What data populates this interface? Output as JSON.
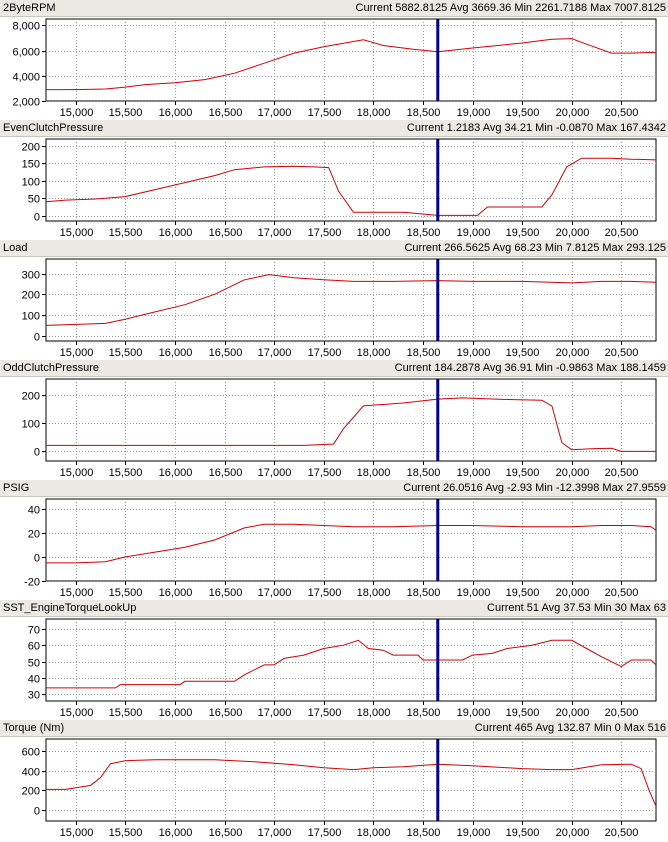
{
  "colors": {
    "line": "#d40000",
    "cursor": "#00008b",
    "grid": "#9a9a9a",
    "header_bg": "#ece9e3"
  },
  "cursor_x": 18650,
  "chart_data": [
    {
      "type": "line",
      "title": "2ByteRPM",
      "stats": "Current 5882.8125 Avg 3669.36 Min 2261.7188 Max 7007.8125",
      "ylim": [
        2000,
        8500
      ],
      "yticks": [
        2000,
        4000,
        6000,
        8000
      ],
      "ytick_labels": [
        "2,000",
        "4,000",
        "6,000",
        "8,000"
      ],
      "xlim": [
        14700,
        20850
      ],
      "xticks": [
        15000,
        15500,
        16000,
        16500,
        17000,
        17500,
        18000,
        18500,
        19000,
        19500,
        20000,
        20500
      ],
      "xtick_labels": [
        "15,000",
        "15,500",
        "16,000",
        "16,500",
        "17,000",
        "17,500",
        "18,000",
        "18,500",
        "19,000",
        "19,500",
        "20,000",
        "20,500"
      ],
      "series": [
        {
          "values": [
            [
              14700,
              2900
            ],
            [
              15000,
              2900
            ],
            [
              15300,
              2950
            ],
            [
              15500,
              3100
            ],
            [
              15700,
              3300
            ],
            [
              16000,
              3450
            ],
            [
              16300,
              3700
            ],
            [
              16600,
              4200
            ],
            [
              16900,
              5000
            ],
            [
              17200,
              5800
            ],
            [
              17500,
              6300
            ],
            [
              17900,
              6850
            ],
            [
              18100,
              6400
            ],
            [
              18400,
              6100
            ],
            [
              18650,
              5900
            ],
            [
              19000,
              6200
            ],
            [
              19500,
              6600
            ],
            [
              19800,
              6900
            ],
            [
              20000,
              6950
            ],
            [
              20150,
              6500
            ],
            [
              20400,
              5800
            ],
            [
              20600,
              5800
            ],
            [
              20850,
              5850
            ]
          ]
        }
      ]
    },
    {
      "type": "line",
      "title": "EvenClutchPressure",
      "stats": "Current 1.2183 Avg 34.21 Min -0.0870 Max 167.4342",
      "ylim": [
        -15,
        220
      ],
      "yticks": [
        0,
        50,
        100,
        150,
        200
      ],
      "ytick_labels": [
        "0",
        "50",
        "100",
        "150",
        "200"
      ],
      "xlim": [
        14700,
        20850
      ],
      "xticks": [
        15000,
        15500,
        16000,
        16500,
        17000,
        17500,
        18000,
        18500,
        19000,
        19500,
        20000,
        20500
      ],
      "xtick_labels": [
        "15,000",
        "15,500",
        "16,000",
        "16,500",
        "17,000",
        "17,500",
        "18,000",
        "18,500",
        "19,000",
        "19,500",
        "20,000",
        "20,500"
      ],
      "series": [
        {
          "values": [
            [
              14700,
              40
            ],
            [
              14900,
              45
            ],
            [
              15200,
              48
            ],
            [
              15500,
              55
            ],
            [
              15800,
              75
            ],
            [
              16100,
              95
            ],
            [
              16400,
              115
            ],
            [
              16600,
              132
            ],
            [
              16900,
              140
            ],
            [
              17200,
              142
            ],
            [
              17400,
              140
            ],
            [
              17550,
              138
            ],
            [
              17650,
              70
            ],
            [
              17800,
              10
            ],
            [
              18000,
              10
            ],
            [
              18300,
              10
            ],
            [
              18500,
              5
            ],
            [
              18650,
              1
            ],
            [
              18900,
              1
            ],
            [
              19050,
              1
            ],
            [
              19150,
              25
            ],
            [
              19400,
              25
            ],
            [
              19700,
              25
            ],
            [
              19800,
              60
            ],
            [
              19950,
              140
            ],
            [
              20100,
              165
            ],
            [
              20400,
              165
            ],
            [
              20600,
              162
            ],
            [
              20850,
              160
            ]
          ]
        }
      ]
    },
    {
      "type": "line",
      "title": "Load",
      "stats": "Current 266.5625 Avg 68.23 Min 7.8125 Max 293.125",
      "ylim": [
        -25,
        370
      ],
      "yticks": [
        0,
        100,
        200,
        300
      ],
      "ytick_labels": [
        "0",
        "100",
        "200",
        "300"
      ],
      "xlim": [
        14700,
        20850
      ],
      "xticks": [
        15000,
        15500,
        16000,
        16500,
        17000,
        17500,
        18000,
        18500,
        19000,
        19500,
        20000,
        20500
      ],
      "xtick_labels": [
        "15,000",
        "15,500",
        "16,000",
        "16,500",
        "17,000",
        "17,500",
        "18,000",
        "18,500",
        "19,000",
        "19,500",
        "20,000",
        "20,500"
      ],
      "series": [
        {
          "values": [
            [
              14700,
              50
            ],
            [
              15000,
              55
            ],
            [
              15300,
              60
            ],
            [
              15500,
              80
            ],
            [
              15800,
              115
            ],
            [
              16100,
              150
            ],
            [
              16400,
              200
            ],
            [
              16700,
              270
            ],
            [
              16950,
              295
            ],
            [
              17200,
              280
            ],
            [
              17500,
              270
            ],
            [
              17800,
              262
            ],
            [
              18200,
              262
            ],
            [
              18650,
              266
            ],
            [
              19000,
              262
            ],
            [
              19500,
              262
            ],
            [
              20000,
              255
            ],
            [
              20300,
              262
            ],
            [
              20600,
              262
            ],
            [
              20850,
              258
            ]
          ]
        }
      ]
    },
    {
      "type": "line",
      "title": "OddClutchPressure",
      "stats": "Current 184.2878 Avg 36.91 Min -0.9863 Max 188.1459",
      "ylim": [
        -35,
        255
      ],
      "yticks": [
        0,
        100,
        200
      ],
      "ytick_labels": [
        "0",
        "100",
        "200"
      ],
      "xlim": [
        14700,
        20850
      ],
      "xticks": [
        15000,
        15500,
        16000,
        16500,
        17000,
        17500,
        18000,
        18500,
        19000,
        19500,
        20000,
        20500
      ],
      "xtick_labels": [
        "15,000",
        "15,500",
        "16,000",
        "16,500",
        "17,000",
        "17,500",
        "18,000",
        "18,500",
        "19,000",
        "19,500",
        "20,000",
        "20,500"
      ],
      "series": [
        {
          "values": [
            [
              14700,
              20
            ],
            [
              15500,
              20
            ],
            [
              16500,
              20
            ],
            [
              17300,
              20
            ],
            [
              17600,
              25
            ],
            [
              17700,
              80
            ],
            [
              17900,
              160
            ],
            [
              18300,
              170
            ],
            [
              18650,
              184
            ],
            [
              18900,
              188
            ],
            [
              19300,
              183
            ],
            [
              19700,
              180
            ],
            [
              19800,
              160
            ],
            [
              19900,
              30
            ],
            [
              20000,
              5
            ],
            [
              20200,
              8
            ],
            [
              20400,
              10
            ],
            [
              20500,
              -1
            ],
            [
              20850,
              -1
            ]
          ]
        }
      ]
    },
    {
      "type": "line",
      "title": "PSIG",
      "stats": "Current 26.0516 Avg -2.93 Min -12.3998 Max 27.9559",
      "ylim": [
        -20,
        48
      ],
      "yticks": [
        -20,
        0,
        20,
        40
      ],
      "ytick_labels": [
        "-20",
        "0",
        "20",
        "40"
      ],
      "xlim": [
        14700,
        20850
      ],
      "xticks": [
        15000,
        15500,
        16000,
        16500,
        17000,
        17500,
        18000,
        18500,
        19000,
        19500,
        20000,
        20500
      ],
      "xtick_labels": [
        "15,000",
        "15,500",
        "16,000",
        "16,500",
        "17,000",
        "17,500",
        "18,000",
        "18,500",
        "19,000",
        "19,500",
        "20,000",
        "20,500"
      ],
      "series": [
        {
          "values": [
            [
              14700,
              -5
            ],
            [
              15000,
              -5
            ],
            [
              15300,
              -4
            ],
            [
              15500,
              0
            ],
            [
              15800,
              4
            ],
            [
              16100,
              8
            ],
            [
              16400,
              14
            ],
            [
              16700,
              24
            ],
            [
              16900,
              27
            ],
            [
              17200,
              27
            ],
            [
              17500,
              26
            ],
            [
              17800,
              25
            ],
            [
              18200,
              25
            ],
            [
              18650,
              26
            ],
            [
              19000,
              26
            ],
            [
              19500,
              25
            ],
            [
              20000,
              25
            ],
            [
              20300,
              26
            ],
            [
              20600,
              26
            ],
            [
              20800,
              25
            ],
            [
              20850,
              22
            ]
          ]
        }
      ]
    },
    {
      "type": "line",
      "title": "SST_EngineTorqueLookUp",
      "stats": "Current 51 Avg 37.53 Min 30 Max 63",
      "ylim": [
        26,
        76
      ],
      "yticks": [
        30,
        40,
        50,
        60,
        70
      ],
      "ytick_labels": [
        "30",
        "40",
        "50",
        "60",
        "70"
      ],
      "xlim": [
        14700,
        20850
      ],
      "xticks": [
        15000,
        15500,
        16000,
        16500,
        17000,
        17500,
        18000,
        18500,
        19000,
        19500,
        20000,
        20500
      ],
      "xtick_labels": [
        "15,000",
        "15,500",
        "16,000",
        "16,500",
        "17,000",
        "17,500",
        "18,000",
        "18,500",
        "19,000",
        "19,500",
        "20,000",
        "20,500"
      ],
      "series": [
        {
          "values": [
            [
              14700,
              34
            ],
            [
              15400,
              34
            ],
            [
              15450,
              36
            ],
            [
              16050,
              36
            ],
            [
              16100,
              38
            ],
            [
              16600,
              38
            ],
            [
              16700,
              42
            ],
            [
              16900,
              48
            ],
            [
              17000,
              48
            ],
            [
              17100,
              52
            ],
            [
              17300,
              54
            ],
            [
              17500,
              58
            ],
            [
              17700,
              60
            ],
            [
              17850,
              63
            ],
            [
              17950,
              58
            ],
            [
              18100,
              57
            ],
            [
              18200,
              54
            ],
            [
              18450,
              54
            ],
            [
              18500,
              51
            ],
            [
              18900,
              51
            ],
            [
              19000,
              54
            ],
            [
              19200,
              55
            ],
            [
              19350,
              58
            ],
            [
              19600,
              60
            ],
            [
              19800,
              63
            ],
            [
              20000,
              63
            ],
            [
              20150,
              58
            ],
            [
              20300,
              53
            ],
            [
              20500,
              47
            ],
            [
              20600,
              51
            ],
            [
              20800,
              51
            ],
            [
              20850,
              48
            ]
          ]
        }
      ]
    },
    {
      "type": "line",
      "title": "Torque (Nm)",
      "stats": "Current 465 Avg 132.87 Min 0 Max 516",
      "ylim": [
        -110,
        720
      ],
      "yticks": [
        0,
        200,
        400,
        600
      ],
      "ytick_labels": [
        "0",
        "200",
        "400",
        "600"
      ],
      "xlim": [
        14700,
        20850
      ],
      "xticks": [
        15000,
        15500,
        16000,
        16500,
        17000,
        17500,
        18000,
        18500,
        19000,
        19500,
        20000,
        20500
      ],
      "xtick_labels": [
        "15,000",
        "15,500",
        "16,000",
        "16,500",
        "17,000",
        "17,500",
        "18,000",
        "18,500",
        "19,000",
        "19,500",
        "20,000",
        "20,500"
      ],
      "series": [
        {
          "values": [
            [
              14700,
              210
            ],
            [
              14900,
              210
            ],
            [
              15150,
              250
            ],
            [
              15250,
              330
            ],
            [
              15350,
              470
            ],
            [
              15500,
              500
            ],
            [
              15800,
              510
            ],
            [
              16400,
              510
            ],
            [
              16800,
              490
            ],
            [
              17200,
              460
            ],
            [
              17500,
              430
            ],
            [
              17800,
              410
            ],
            [
              18000,
              430
            ],
            [
              18300,
              440
            ],
            [
              18650,
              465
            ],
            [
              19000,
              450
            ],
            [
              19500,
              420
            ],
            [
              19800,
              410
            ],
            [
              20000,
              410
            ],
            [
              20300,
              460
            ],
            [
              20600,
              465
            ],
            [
              20700,
              420
            ],
            [
              20780,
              200
            ],
            [
              20850,
              40
            ]
          ]
        }
      ]
    }
  ]
}
